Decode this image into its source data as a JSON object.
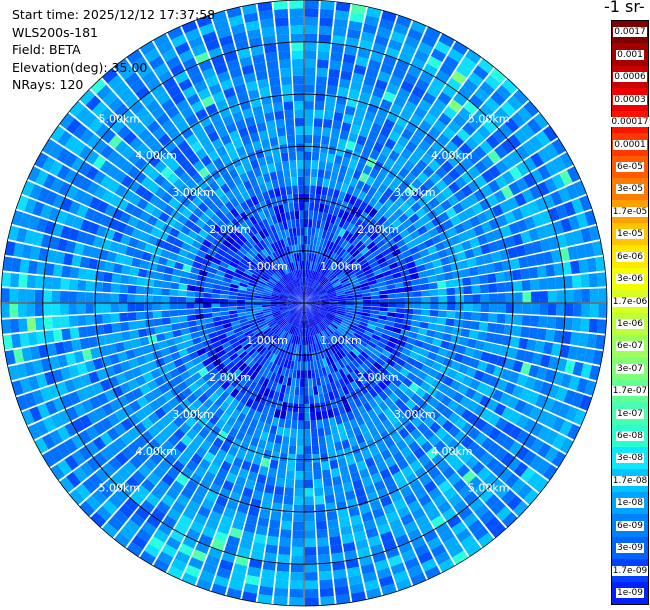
{
  "info": {
    "start_time": "Start time: 2025/12/12 17:37:58",
    "instrument": "WLS200s-181",
    "field": "Field: BETA",
    "elevation": "Elevation(deg): 35.00",
    "nrays": "NRays: 120"
  },
  "colorbar": {
    "title": "-1 sr-",
    "labels": [
      "0.0017",
      "0.001",
      "0.0006",
      "0.0003",
      "0.00017",
      "0.0001",
      "6e-05",
      "3e-05",
      "1.7e-05",
      "1e-05",
      "6e-06",
      "3e-06",
      "1.7e-06",
      "1e-06",
      "6e-07",
      "3e-07",
      "1.7e-07",
      "1e-07",
      "6e-08",
      "3e-08",
      "1.7e-08",
      "1e-08",
      "6e-09",
      "3e-09",
      "1.7e-09",
      "1e-09"
    ],
    "colors": [
      "#7f0000",
      "#a30000",
      "#c80000",
      "#ec0000",
      "#ff1300",
      "#ff3700",
      "#ff5a00",
      "#ff7c00",
      "#ffa000",
      "#ffc300",
      "#ffe700",
      "#f4ff04",
      "#d7ff21",
      "#baff3d",
      "#9cff5a",
      "#80ff77",
      "#63ff93",
      "#46ffb0",
      "#29ffce",
      "#0ce6ff",
      "#00c4ff",
      "#00a4ff",
      "#0082ff",
      "#0064ff",
      "#0042ff",
      "#0020ff"
    ]
  },
  "range_labels": [
    "1.00km",
    "2.00km",
    "3.00km",
    "4.00km",
    "5.00km"
  ],
  "chart_data": {
    "type": "heatmap",
    "projection": "polar PPI scan",
    "field": "BETA",
    "elevation_deg": 35.0,
    "n_rays": 120,
    "range_rings_km": [
      1,
      2,
      3,
      4,
      5
    ],
    "max_range_km": 5.8,
    "scale": "log",
    "value_range": [
      1e-09,
      0.0017
    ],
    "dominant_values": "mostly 1e-08 to 1.7e-07 (blue to cyan), lower values near the center",
    "colors": {
      "low": "#00007f",
      "mid": "#00a4ff",
      "high": "#7f0000"
    }
  }
}
